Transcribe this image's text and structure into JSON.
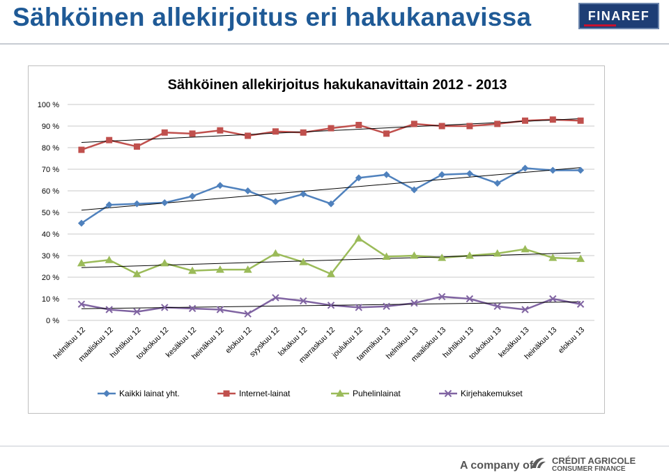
{
  "slide": {
    "title": "Sähköinen allekirjoitus eri hakukanavissa",
    "logo_text": "FINAREF",
    "footer_company": "A company of",
    "footer_brand_line1": "CRÉDIT AGRICOLE",
    "footer_brand_line2": "CONSUMER FINANCE"
  },
  "colors": {
    "title": "#1f5a96",
    "logo_bg": "#1e3e75",
    "logo_accent": "#c8102e"
  },
  "chart_data": {
    "type": "line",
    "title": "Sähköinen allekirjoitus hakukanavittain 2012 - 2013",
    "xlabel": "",
    "ylabel": "",
    "ylim": [
      0,
      100
    ],
    "yticks": [
      "0 %",
      "10 %",
      "20 %",
      "30 %",
      "40 %",
      "50 %",
      "60 %",
      "70 %",
      "80 %",
      "90 %",
      "100 %"
    ],
    "grid": true,
    "legend_position": "bottom",
    "trendlines": true,
    "categories": [
      "helmikuu 12",
      "maaliskuu 12",
      "huhtikuu 12",
      "toukokuu 12",
      "kesäkuu 12",
      "heinäkuu 12",
      "elokuu 12",
      "syyskuu 12",
      "lokakuu 12",
      "marraskuu 12",
      "joulukuu 12",
      "tammikuu 13",
      "helmikuu 13",
      "maaliskuu 13",
      "huhtikuu 13",
      "toukokuu 13",
      "kesäkuu 13",
      "heinäkuu 13",
      "elokuu 13"
    ],
    "series": [
      {
        "name": "Kaikki lainat yht.",
        "color": "#4f81bd",
        "marker": "diamond",
        "values": [
          45,
          53.5,
          54,
          54.5,
          57.5,
          62.5,
          60,
          55,
          58.5,
          54,
          66,
          67.5,
          60.5,
          67.5,
          68,
          63.5,
          70.5,
          69.5,
          69.5
        ]
      },
      {
        "name": "Internet-lainat",
        "color": "#c0504d",
        "marker": "square",
        "values": [
          79,
          83.5,
          80.5,
          87,
          86.5,
          88,
          85.5,
          87.5,
          87,
          89,
          90.5,
          86.5,
          91,
          90,
          90,
          91,
          92.5,
          93,
          92.5
        ]
      },
      {
        "name": "Puhelinlainat",
        "color": "#9bbb59",
        "marker": "triangle",
        "values": [
          26.5,
          28,
          21.5,
          26.5,
          23,
          23.5,
          23.5,
          31,
          27,
          21.5,
          38,
          29.5,
          30,
          29,
          30,
          31,
          33,
          29,
          28.5
        ]
      },
      {
        "name": "Kirjehakemukset",
        "color": "#8064a2",
        "marker": "x",
        "values": [
          7.5,
          5,
          4,
          6,
          5.5,
          5,
          3,
          10.5,
          9,
          7,
          6,
          6.5,
          8,
          11,
          10,
          6.5,
          5,
          10,
          7.5
        ]
      }
    ]
  }
}
